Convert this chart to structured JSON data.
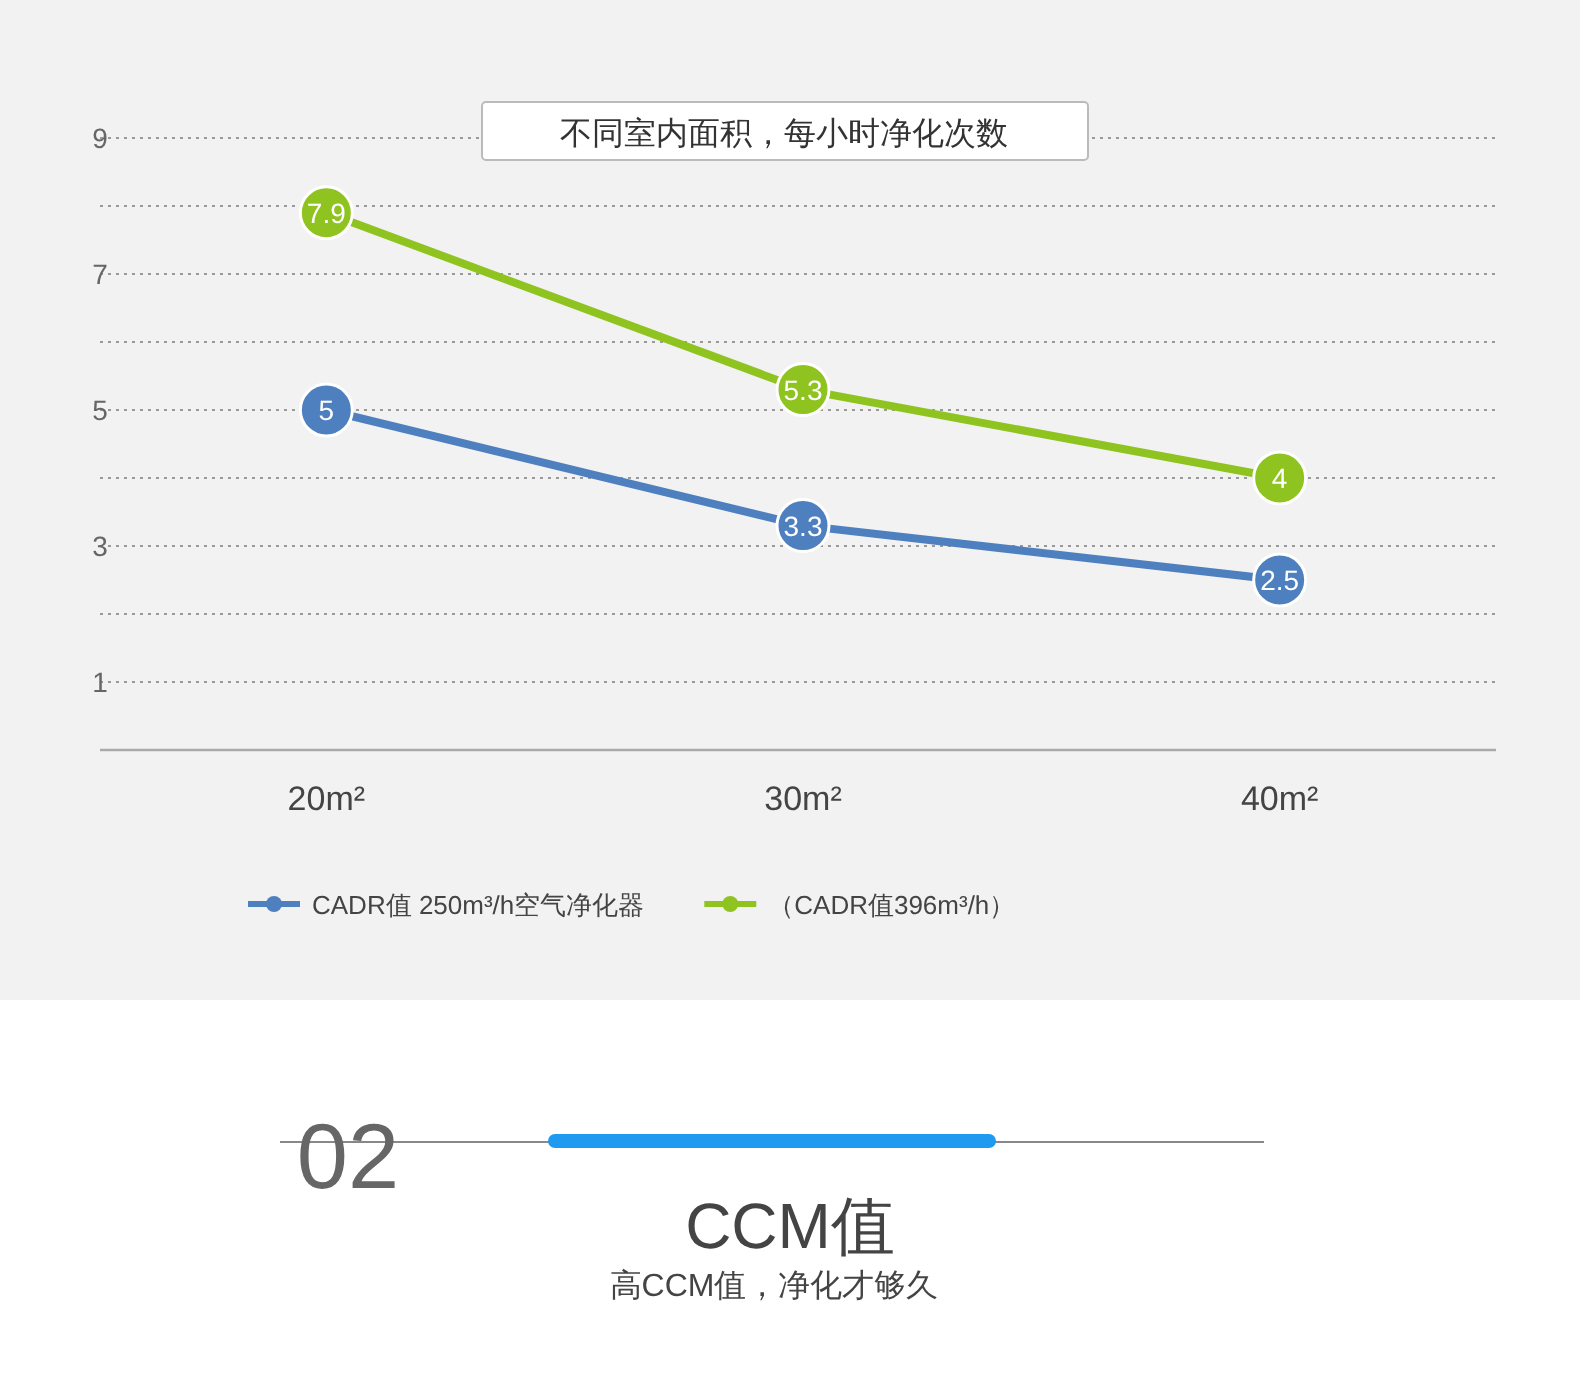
{
  "chart_data": {
    "type": "line",
    "title": "不同室内面积，每小时净化次数",
    "categories": [
      "20m²",
      "30m²",
      "40m²"
    ],
    "series": [
      {
        "name": "CADR值 250m³/h空气净化器",
        "color": "#4e7fbf",
        "values": [
          5,
          3.3,
          2.5
        ]
      },
      {
        "name": "（CADR值396m³/h）",
        "color": "#8fc31f",
        "values": [
          7.9,
          5.3,
          4
        ]
      }
    ],
    "ylim": [
      0,
      9
    ],
    "yticks": [
      1,
      {
        "value": 2,
        "label": null
      },
      3,
      {
        "value": 4,
        "label": null
      },
      5,
      {
        "value": 6,
        "label": null
      },
      7,
      {
        "value": 8,
        "label": null
      },
      9
    ],
    "grid": "y",
    "legend": "bottom",
    "marker": "circle",
    "line_style": "solid",
    "data_labels": true,
    "annotations": [
      "02",
      "CCM值",
      "高CCM值，净化才够久"
    ]
  }
}
